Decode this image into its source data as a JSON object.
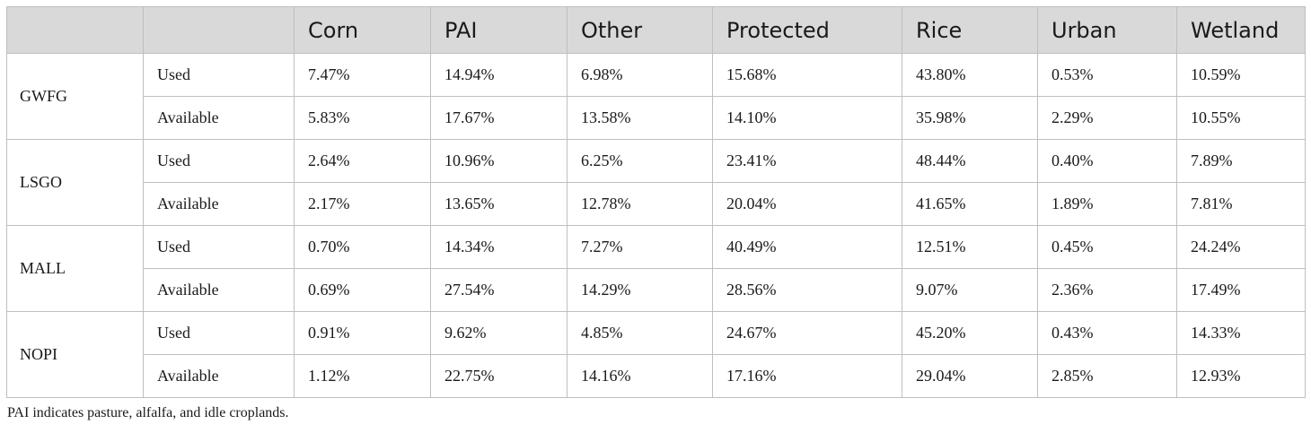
{
  "table": {
    "columns": [
      "",
      "",
      "Corn",
      "PAI",
      "Other",
      "Protected",
      "Rice",
      "Urban",
      "Wetland"
    ],
    "groups": [
      {
        "species": "GWFG",
        "rows": [
          {
            "label": "Used",
            "values": [
              "7.47%",
              "14.94%",
              "6.98%",
              "15.68%",
              "43.80%",
              "0.53%",
              "10.59%"
            ]
          },
          {
            "label": "Available",
            "values": [
              "5.83%",
              "17.67%",
              "13.58%",
              "14.10%",
              "35.98%",
              "2.29%",
              "10.55%"
            ]
          }
        ]
      },
      {
        "species": "LSGO",
        "rows": [
          {
            "label": "Used",
            "values": [
              "2.64%",
              "10.96%",
              "6.25%",
              "23.41%",
              "48.44%",
              "0.40%",
              "7.89%"
            ]
          },
          {
            "label": "Available",
            "values": [
              "2.17%",
              "13.65%",
              "12.78%",
              "20.04%",
              "41.65%",
              "1.89%",
              "7.81%"
            ]
          }
        ]
      },
      {
        "species": "MALL",
        "rows": [
          {
            "label": "Used",
            "values": [
              "0.70%",
              "14.34%",
              "7.27%",
              "40.49%",
              "12.51%",
              "0.45%",
              "24.24%"
            ]
          },
          {
            "label": "Available",
            "values": [
              "0.69%",
              "27.54%",
              "14.29%",
              "28.56%",
              "9.07%",
              "2.36%",
              "17.49%"
            ]
          }
        ]
      },
      {
        "species": "NOPI",
        "rows": [
          {
            "label": "Used",
            "values": [
              "0.91%",
              "9.62%",
              "4.85%",
              "24.67%",
              "45.20%",
              "0.43%",
              "14.33%"
            ]
          },
          {
            "label": "Available",
            "values": [
              "1.12%",
              "22.75%",
              "14.16%",
              "17.16%",
              "29.04%",
              "2.85%",
              "12.93%"
            ]
          }
        ]
      }
    ]
  },
  "footnote": "PAI indicates pasture, alfalfa, and idle croplands."
}
